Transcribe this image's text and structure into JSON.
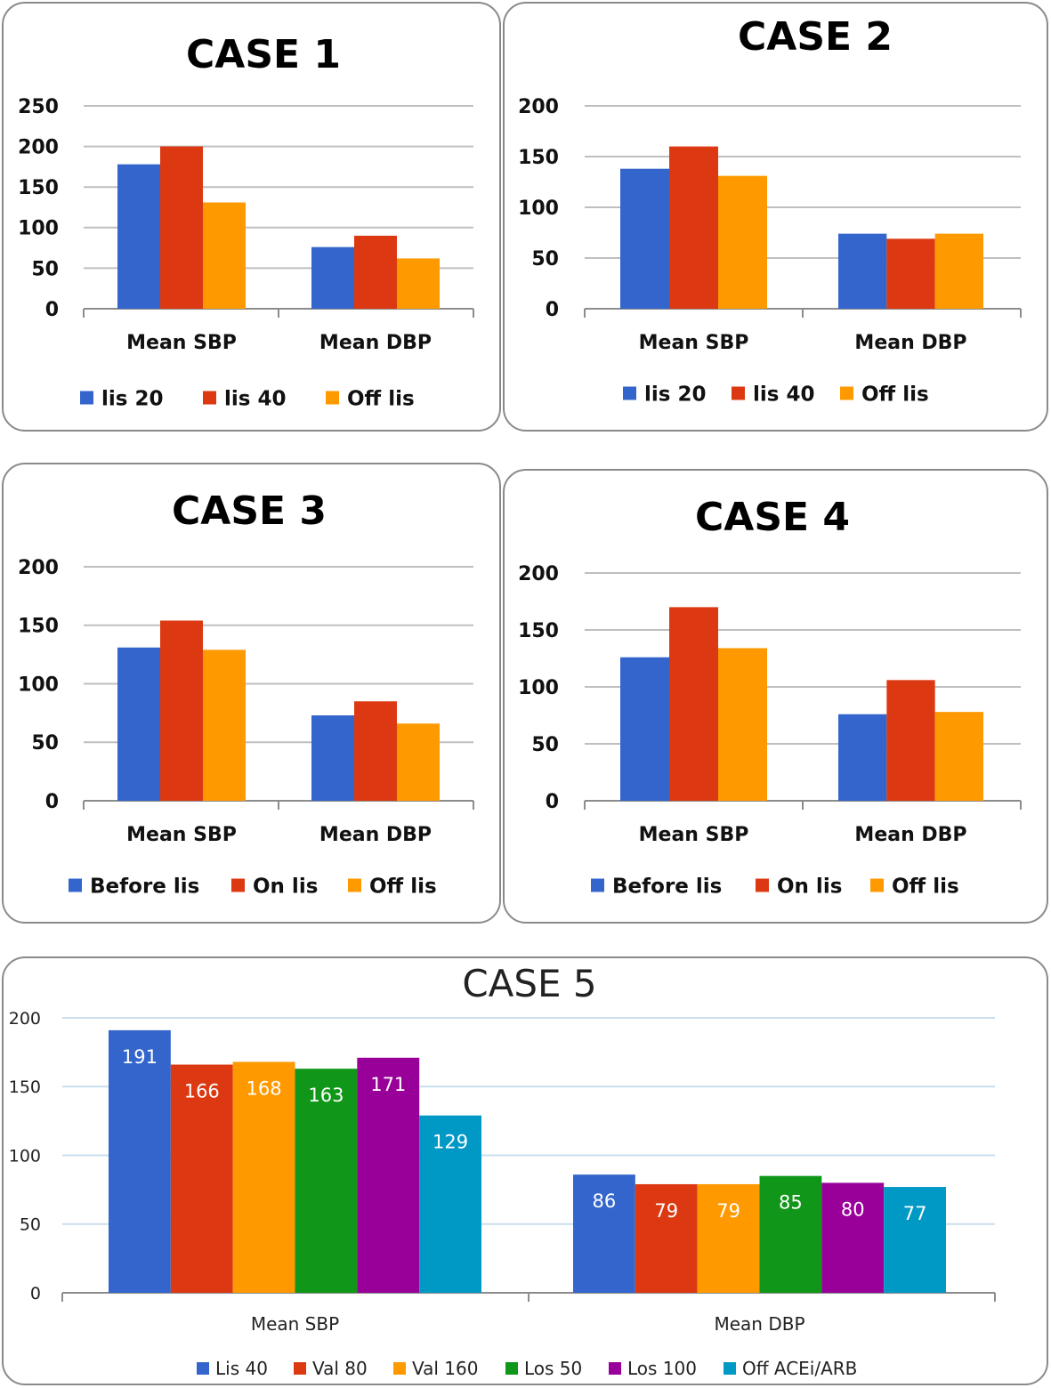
{
  "colors": {
    "blue": "#3465CC",
    "red": "#DC3912",
    "orange": "#FF9900",
    "green": "#109618",
    "purple": "#990099",
    "teal": "#0099C6",
    "grid": "#BFBFBF",
    "grid_case5": "#C9DEEF"
  },
  "chart_data": [
    {
      "type": "bar",
      "title": "CASE 1",
      "categories": [
        "Mean SBP",
        "Mean DBP"
      ],
      "series": [
        {
          "name": "lis 20",
          "values": [
            178,
            76
          ],
          "color": "#3465CC"
        },
        {
          "name": "lis 40",
          "values": [
            200,
            90
          ],
          "color": "#DC3912"
        },
        {
          "name": "Off lis",
          "values": [
            131,
            62
          ],
          "color": "#FF9900"
        }
      ],
      "yticks": [
        "0",
        "50",
        "100",
        "150",
        "200",
        "250"
      ],
      "ylim": [
        0,
        250
      ],
      "grid": true,
      "legend": "bottom"
    },
    {
      "type": "bar",
      "title": "CASE 2",
      "categories": [
        "Mean SBP",
        "Mean DBP"
      ],
      "series": [
        {
          "name": "lis 20",
          "values": [
            138,
            74
          ],
          "color": "#3465CC"
        },
        {
          "name": "lis 40",
          "values": [
            160,
            69
          ],
          "color": "#DC3912"
        },
        {
          "name": "Off lis",
          "values": [
            131,
            74
          ],
          "color": "#FF9900"
        }
      ],
      "yticks": [
        "0",
        "50",
        "100",
        "150",
        "200"
      ],
      "ylim": [
        0,
        200
      ],
      "grid": true,
      "legend": "bottom"
    },
    {
      "type": "bar",
      "title": "CASE 3",
      "categories": [
        "Mean SBP",
        "Mean DBP"
      ],
      "series": [
        {
          "name": "Before lis",
          "values": [
            131,
            73
          ],
          "color": "#3465CC"
        },
        {
          "name": "On lis",
          "values": [
            154,
            85
          ],
          "color": "#DC3912"
        },
        {
          "name": "Off lis",
          "values": [
            129,
            66
          ],
          "color": "#FF9900"
        }
      ],
      "yticks": [
        "0",
        "50",
        "100",
        "150",
        "200"
      ],
      "ylim": [
        0,
        200
      ],
      "grid": true,
      "legend": "bottom"
    },
    {
      "type": "bar",
      "title": "CASE 4",
      "categories": [
        "Mean SBP",
        "Mean DBP"
      ],
      "series": [
        {
          "name": "Before lis",
          "values": [
            126,
            76
          ],
          "color": "#3465CC"
        },
        {
          "name": "On lis",
          "values": [
            170,
            106
          ],
          "color": "#DC3912"
        },
        {
          "name": "Off lis",
          "values": [
            134,
            78
          ],
          "color": "#FF9900"
        }
      ],
      "yticks": [
        "0",
        "50",
        "100",
        "150",
        "200"
      ],
      "ylim": [
        0,
        200
      ],
      "grid": true,
      "legend": "bottom"
    },
    {
      "type": "bar",
      "title": "CASE 5",
      "categories": [
        "Mean SBP",
        "Mean DBP"
      ],
      "series": [
        {
          "name": "Lis 40",
          "values": [
            191,
            86
          ],
          "color": "#3465CC"
        },
        {
          "name": "Val 80",
          "values": [
            166,
            79
          ],
          "color": "#DC3912"
        },
        {
          "name": "Val 160",
          "values": [
            168,
            79
          ],
          "color": "#FF9900"
        },
        {
          "name": "Los 50",
          "values": [
            163,
            85
          ],
          "color": "#109618"
        },
        {
          "name": "Los 100",
          "values": [
            171,
            80
          ],
          "color": "#990099"
        },
        {
          "name": "Off ACEi/ARB",
          "values": [
            129,
            77
          ],
          "color": "#0099C6"
        }
      ],
      "yticks": [
        "0",
        "50",
        "100",
        "150",
        "200"
      ],
      "ylim": [
        0,
        200
      ],
      "grid": true,
      "data_labels": true,
      "legend": "bottom"
    }
  ]
}
